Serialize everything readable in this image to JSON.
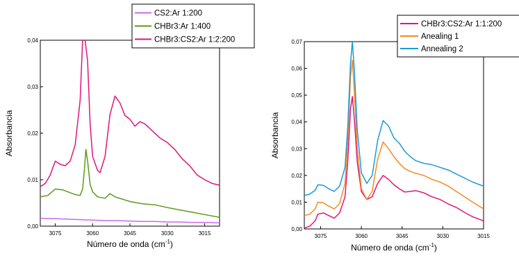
{
  "chart_data": [
    {
      "type": "line",
      "xlabel": "Número de onda",
      "xlabel_unit": "cm",
      "xlabel_unit_exp": "-1",
      "ylabel": "Absorbancia",
      "xlim": [
        3081,
        3009
      ],
      "ylim": [
        0,
        0.04
      ],
      "xticks": [
        "3075",
        "3060",
        "3045",
        "3030",
        "3015"
      ],
      "xtick_values": [
        3075,
        3060,
        3045,
        3030,
        3015
      ],
      "yticks": [
        "0,00",
        "0,01",
        "0,02",
        "0,03",
        "0,04"
      ],
      "ytick_values": [
        0,
        0.01,
        0.02,
        0.03,
        0.04
      ],
      "legend_position": "top-right",
      "series": [
        {
          "name": "CS2:Ar 1:200",
          "color": "#cc66ee",
          "points": [
            [
              3081,
              0.0017
            ],
            [
              3075,
              0.0016
            ],
            [
              3070,
              0.0015
            ],
            [
              3065,
              0.0014
            ],
            [
              3060,
              0.0013
            ],
            [
              3055,
              0.0012
            ],
            [
              3050,
              0.0012
            ],
            [
              3045,
              0.0011
            ],
            [
              3040,
              0.001
            ],
            [
              3035,
              0.001
            ],
            [
              3030,
              0.0009
            ],
            [
              3025,
              0.0009
            ],
            [
              3020,
              0.0008
            ],
            [
              3015,
              0.0008
            ],
            [
              3009,
              0.0007
            ]
          ]
        },
        {
          "name": "CHBr3:Ar 1:400",
          "color": "#5a9a1a",
          "points": [
            [
              3081,
              0.0063
            ],
            [
              3078,
              0.0066
            ],
            [
              3075,
              0.008
            ],
            [
              3072,
              0.0078
            ],
            [
              3069,
              0.0072
            ],
            [
              3067,
              0.0068
            ],
            [
              3065,
              0.0066
            ],
            [
              3064,
              0.008
            ],
            [
              3063.3,
              0.012
            ],
            [
              3062.7,
              0.0165
            ],
            [
              3062,
              0.014
            ],
            [
              3061,
              0.009
            ],
            [
              3060,
              0.0074
            ],
            [
              3058,
              0.0063
            ],
            [
              3055,
              0.006
            ],
            [
              3053,
              0.007
            ],
            [
              3051,
              0.0063
            ],
            [
              3048,
              0.0058
            ],
            [
              3045,
              0.0053
            ],
            [
              3040,
              0.0048
            ],
            [
              3035,
              0.0046
            ],
            [
              3030,
              0.004
            ],
            [
              3025,
              0.0035
            ],
            [
              3020,
              0.003
            ],
            [
              3015,
              0.0025
            ],
            [
              3009,
              0.0019
            ]
          ]
        },
        {
          "name": "CHBr3:CS2:Ar 1:2:200",
          "color": "#e0147a",
          "points": [
            [
              3081,
              0.0085
            ],
            [
              3079,
              0.0092
            ],
            [
              3077,
              0.011
            ],
            [
              3075,
              0.014
            ],
            [
              3073,
              0.0133
            ],
            [
              3071,
              0.013
            ],
            [
              3069,
              0.014
            ],
            [
              3067,
              0.0175
            ],
            [
              3065,
              0.027
            ],
            [
              3064,
              0.04
            ],
            [
              3063,
              0.04
            ],
            [
              3062,
              0.0355
            ],
            [
              3061,
              0.022
            ],
            [
              3060,
              0.015
            ],
            [
              3058,
              0.012
            ],
            [
              3057,
              0.0115
            ],
            [
              3055,
              0.015
            ],
            [
              3053,
              0.024
            ],
            [
              3051,
              0.028
            ],
            [
              3049,
              0.0265
            ],
            [
              3047,
              0.0238
            ],
            [
              3045,
              0.023
            ],
            [
              3043,
              0.0215
            ],
            [
              3041,
              0.0225
            ],
            [
              3039,
              0.022
            ],
            [
              3036,
              0.0205
            ],
            [
              3033,
              0.019
            ],
            [
              3030,
              0.018
            ],
            [
              3027,
              0.0165
            ],
            [
              3024,
              0.0145
            ],
            [
              3021,
              0.013
            ],
            [
              3018,
              0.011
            ],
            [
              3015,
              0.01
            ],
            [
              3012,
              0.0092
            ],
            [
              3009,
              0.0088
            ]
          ]
        }
      ]
    },
    {
      "type": "line",
      "xlabel": "Número de onda",
      "xlabel_unit": "cm",
      "xlabel_unit_exp": "-1",
      "ylabel": "Absorbancia",
      "xlim": [
        3081,
        3015
      ],
      "ylim": [
        0,
        0.07
      ],
      "xticks": [
        "3075",
        "3060",
        "3045",
        "3030",
        "3015"
      ],
      "xtick_values": [
        3075,
        3060,
        3045,
        3030,
        3015
      ],
      "yticks": [
        "0,00",
        "0,01",
        "0,02",
        "0,03",
        "0,04",
        "0,05",
        "0,06",
        "0,07"
      ],
      "ytick_values": [
        0,
        0.01,
        0.02,
        0.03,
        0.04,
        0.05,
        0.06,
        0.07
      ],
      "legend_position": "top-right",
      "series": [
        {
          "name": "CHBr3:CS2:Ar 1:1:200",
          "color": "#e0147a",
          "points": [
            [
              3081,
              0.0003
            ],
            [
              3079,
              0.001
            ],
            [
              3077,
              0.003
            ],
            [
              3076,
              0.0055
            ],
            [
              3074,
              0.006
            ],
            [
              3072,
              0.005
            ],
            [
              3070,
              0.004
            ],
            [
              3068,
              0.006
            ],
            [
              3066,
              0.012
            ],
            [
              3065,
              0.025
            ],
            [
              3064,
              0.045
            ],
            [
              3063.3,
              0.0495
            ],
            [
              3062.5,
              0.04
            ],
            [
              3061.5,
              0.025
            ],
            [
              3060,
              0.014
            ],
            [
              3058,
              0.011
            ],
            [
              3056,
              0.012
            ],
            [
              3054,
              0.017
            ],
            [
              3052,
              0.02
            ],
            [
              3050,
              0.0185
            ],
            [
              3048,
              0.0165
            ],
            [
              3046,
              0.015
            ],
            [
              3044,
              0.0138
            ],
            [
              3042,
              0.014
            ],
            [
              3040,
              0.0143
            ],
            [
              3037,
              0.0135
            ],
            [
              3034,
              0.012
            ],
            [
              3031,
              0.011
            ],
            [
              3028,
              0.0093
            ],
            [
              3025,
              0.008
            ],
            [
              3022,
              0.0062
            ],
            [
              3019,
              0.0045
            ],
            [
              3015,
              0.003
            ]
          ]
        },
        {
          "name": "Anealing 1",
          "color": "#f58a1f",
          "points": [
            [
              3081,
              0.005
            ],
            [
              3079,
              0.0055
            ],
            [
              3077,
              0.0075
            ],
            [
              3076,
              0.01
            ],
            [
              3074,
              0.0098
            ],
            [
              3072,
              0.0085
            ],
            [
              3070,
              0.0075
            ],
            [
              3068,
              0.0095
            ],
            [
              3066,
              0.017
            ],
            [
              3065,
              0.033
            ],
            [
              3064,
              0.057
            ],
            [
              3063.3,
              0.063
            ],
            [
              3062.5,
              0.05
            ],
            [
              3061.5,
              0.03
            ],
            [
              3060,
              0.015
            ],
            [
              3058,
              0.011
            ],
            [
              3056,
              0.014
            ],
            [
              3054,
              0.026
            ],
            [
              3052,
              0.0325
            ],
            [
              3050,
              0.03
            ],
            [
              3048,
              0.027
            ],
            [
              3046,
              0.0245
            ],
            [
              3044,
              0.0225
            ],
            [
              3042,
              0.0215
            ],
            [
              3040,
              0.0208
            ],
            [
              3037,
              0.02
            ],
            [
              3034,
              0.0185
            ],
            [
              3031,
              0.0175
            ],
            [
              3028,
              0.016
            ],
            [
              3025,
              0.014
            ],
            [
              3022,
              0.012
            ],
            [
              3019,
              0.01
            ],
            [
              3015,
              0.0075
            ]
          ]
        },
        {
          "name": "Annealing 2",
          "color": "#1a9ad6",
          "points": [
            [
              3081,
              0.0125
            ],
            [
              3079,
              0.013
            ],
            [
              3077,
              0.0145
            ],
            [
              3076,
              0.0165
            ],
            [
              3074,
              0.0163
            ],
            [
              3072,
              0.015
            ],
            [
              3070,
              0.014
            ],
            [
              3068,
              0.016
            ],
            [
              3066,
              0.023
            ],
            [
              3065,
              0.038
            ],
            [
              3064,
              0.062
            ],
            [
              3063.3,
              0.07
            ],
            [
              3062.5,
              0.058
            ],
            [
              3061.5,
              0.037
            ],
            [
              3060,
              0.021
            ],
            [
              3058,
              0.017
            ],
            [
              3056,
              0.02
            ],
            [
              3054,
              0.033
            ],
            [
              3052,
              0.0405
            ],
            [
              3050,
              0.0385
            ],
            [
              3048,
              0.034
            ],
            [
              3046,
              0.032
            ],
            [
              3044,
              0.029
            ],
            [
              3042,
              0.027
            ],
            [
              3040,
              0.0255
            ],
            [
              3037,
              0.0245
            ],
            [
              3034,
              0.024
            ],
            [
              3031,
              0.023
            ],
            [
              3028,
              0.022
            ],
            [
              3025,
              0.0205
            ],
            [
              3022,
              0.019
            ],
            [
              3019,
              0.0175
            ],
            [
              3015,
              0.016
            ]
          ]
        }
      ]
    }
  ]
}
